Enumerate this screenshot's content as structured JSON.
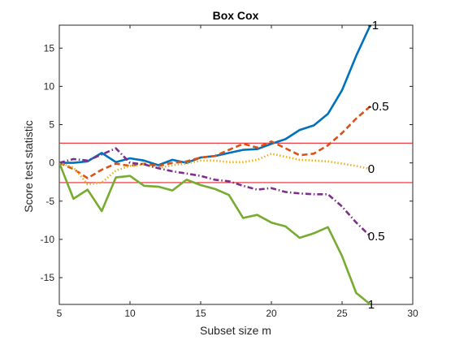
{
  "chart_data": {
    "type": "line",
    "title": "Box Cox",
    "xlabel": "Subset size m",
    "ylabel": "Score test statistic",
    "xlim": [
      5,
      30
    ],
    "ylim": [
      -18.5,
      18
    ],
    "xticks": [
      5,
      10,
      15,
      20,
      25,
      30
    ],
    "yticks": [
      -15,
      -10,
      -5,
      0,
      5,
      10,
      15
    ],
    "grid": false,
    "legend": "none",
    "reference_lines": [
      {
        "y": 2.58,
        "color": "#e8262d"
      },
      {
        "y": -2.58,
        "color": "#e8262d"
      }
    ],
    "x": [
      5,
      6,
      7,
      8,
      9,
      10,
      11,
      12,
      13,
      14,
      15,
      16,
      17,
      18,
      19,
      20,
      21,
      22,
      23,
      24,
      25,
      26,
      27
    ],
    "series": [
      {
        "name": "-1",
        "color": "#0072bd",
        "dash": "solid",
        "values": [
          0,
          0,
          0.2,
          1.3,
          0.1,
          0.6,
          0.3,
          -0.3,
          0.4,
          0,
          0.7,
          0.9,
          1.3,
          1.7,
          1.8,
          2.5,
          3.1,
          4.3,
          4.9,
          6.4,
          9.5,
          14,
          18
        ]
      },
      {
        "name": "-0.5",
        "color": "#d95319",
        "dash": "dashed",
        "values": [
          0,
          -0.8,
          -2,
          -0.9,
          -0.1,
          -0.4,
          -0.1,
          -0.4,
          0,
          0.2,
          0.7,
          0.9,
          1.7,
          2.5,
          2,
          2.8,
          1.9,
          1,
          1.2,
          2.3,
          3.9,
          5.8,
          7.4
        ]
      },
      {
        "name": "0",
        "color": "#edb120",
        "dash": "dotted",
        "values": [
          0,
          -0.6,
          -2.8,
          -2.6,
          -1,
          -0.4,
          -0.2,
          -0.7,
          -0.3,
          -0.1,
          0.3,
          0.3,
          0.1,
          0.1,
          0.4,
          1.2,
          0.8,
          0.4,
          0.3,
          0.2,
          -0.1,
          -0.4,
          -0.8
        ]
      },
      {
        "name": "0.5",
        "color": "#7e2f8e",
        "dash": "dashdot",
        "values": [
          0,
          0.5,
          0.3,
          1.1,
          1.9,
          0,
          -0.2,
          -0.7,
          -1.1,
          -1.4,
          -1.7,
          -2.2,
          -2.4,
          -3,
          -3.5,
          -3.3,
          -3.8,
          -4,
          -4.1,
          -4.1,
          -5.7,
          -7.8,
          -9.6
        ]
      },
      {
        "name": "1",
        "color": "#77ac30",
        "dash": "solid",
        "values": [
          0,
          -4.7,
          -3.5,
          -6.3,
          -1.9,
          -1.7,
          -3,
          -3.1,
          -3.6,
          -2.2,
          -2.9,
          -3.4,
          -4.2,
          -7.2,
          -6.8,
          -7.8,
          -8.3,
          -9.8,
          -9.2,
          -8.4,
          -12.2,
          -17,
          -18.5
        ]
      }
    ]
  }
}
